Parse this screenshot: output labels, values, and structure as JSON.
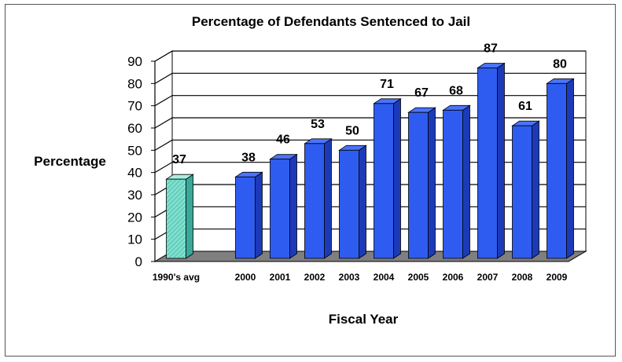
{
  "chart_data": {
    "type": "bar",
    "title": "Percentage of Defendants Sentenced to Jail",
    "xlabel": "Fiscal Year",
    "ylabel": "Percentage",
    "ylim": [
      0,
      90
    ],
    "yticks": [
      0,
      10,
      20,
      30,
      40,
      50,
      60,
      70,
      80,
      90
    ],
    "grid": true,
    "categories": [
      "1990's avg",
      "2000",
      "2001",
      "2002",
      "2003",
      "2004",
      "2005",
      "2006",
      "2007",
      "2008",
      "2009"
    ],
    "values": [
      37,
      38,
      46,
      53,
      50,
      71,
      67,
      68,
      87,
      61,
      80
    ],
    "colors": {
      "baseline_bar": "#7fe0cf",
      "bar": "#2f5cf0",
      "bar_side": "#1c3ab8",
      "bar_top": "#4a74ff",
      "wall": "#ffffff",
      "floor": "#7f7f7f",
      "side_wall": "#ffffff"
    }
  }
}
